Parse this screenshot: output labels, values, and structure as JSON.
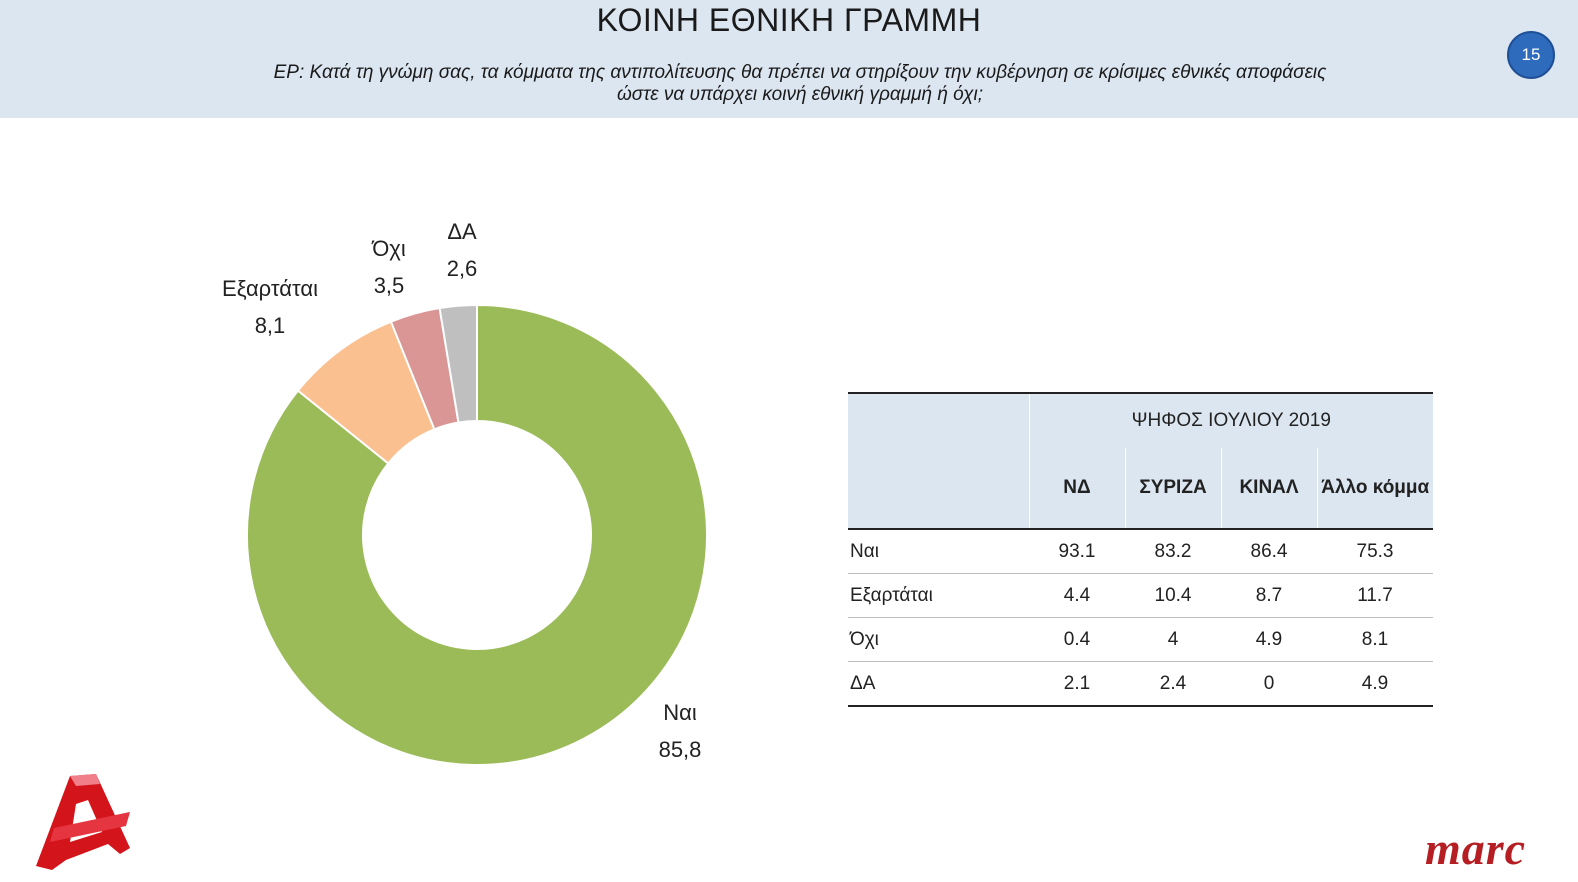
{
  "header": {
    "title": "ΚΟΙΝΗ ΕΘΝΙΚΗ ΓΡΑΜΜΗ",
    "question_line1": "ΕΡ: Κατά τη γνώμη σας, τα κόμματα της αντιπολίτευσης θα πρέπει να στηρίξουν την κυβέρνηση σε κρίσιμες εθνικές αποφάσεις",
    "question_line2": "ώστε να υπάρχει κοινή εθνική γραμμή ή όχι;",
    "page_number": "15"
  },
  "chart_data": {
    "type": "donut",
    "slices": [
      {
        "label": "Ναι",
        "value": 85.8,
        "display": "85,8",
        "color": "#9bbb59"
      },
      {
        "label": "Εξαρτάται",
        "value": 8.1,
        "display": "8,1",
        "color": "#fac090"
      },
      {
        "label": "Όχι",
        "value": 3.5,
        "display": "3,5",
        "color": "#d99694"
      },
      {
        "label": "ΔΑ",
        "value": 2.6,
        "display": "2,6",
        "color": "#bfbfbf"
      }
    ]
  },
  "table": {
    "group_header": "ΨΗΦΟΣ ΙΟΥΛΙΟΥ 2019",
    "columns": [
      "ΝΔ",
      "ΣΥΡΙΖΑ",
      "ΚΙΝΑΛ",
      "Άλλο κόμμα"
    ],
    "rows": [
      {
        "label": "Ναι",
        "values": [
          "93.1",
          "83.2",
          "86.4",
          "75.3"
        ]
      },
      {
        "label": "Εξαρτάται",
        "values": [
          "4.4",
          "10.4",
          "8.7",
          "11.7"
        ]
      },
      {
        "label": "Όχι",
        "values": [
          "0.4",
          "4",
          "4.9",
          "8.1"
        ]
      },
      {
        "label": "ΔΑ",
        "values": [
          "2.1",
          "2.4",
          "0",
          "4.9"
        ]
      }
    ]
  },
  "logos": {
    "left": "alpha-logo",
    "right": "marc"
  }
}
